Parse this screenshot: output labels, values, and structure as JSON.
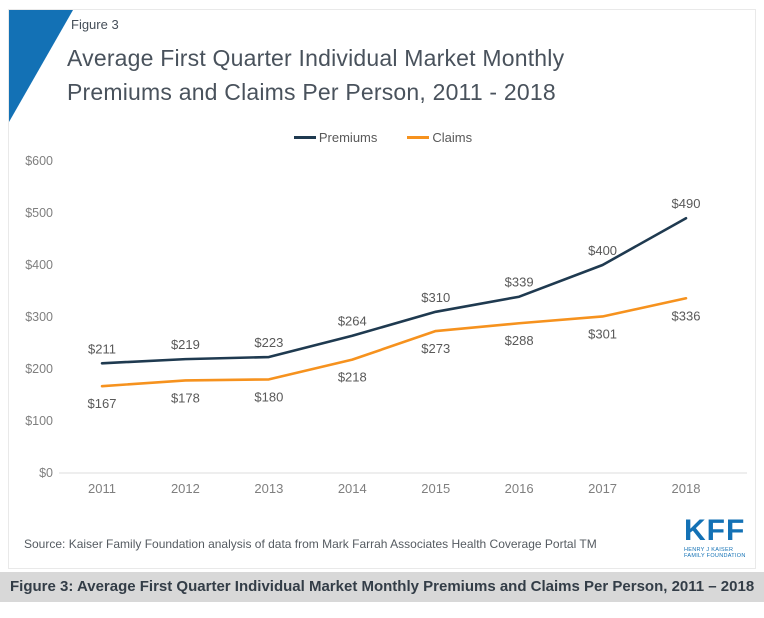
{
  "header": {
    "figure_label": "Figure 3",
    "title_line1": "Average First Quarter Individual Market Monthly",
    "title_line2": "Premiums and Claims Per Person, 2011 - 2018"
  },
  "chart_data": {
    "type": "line",
    "title": "Average First Quarter Individual Market Monthly Premiums and Claims Per Person, 2011 - 2018",
    "categories": [
      "2011",
      "2012",
      "2013",
      "2014",
      "2015",
      "2016",
      "2017",
      "2018"
    ],
    "series": [
      {
        "name": "Premiums",
        "color": "#1f3a50",
        "values": [
          211,
          219,
          223,
          264,
          310,
          339,
          400,
          490
        ]
      },
      {
        "name": "Claims",
        "color": "#f6921e",
        "values": [
          167,
          178,
          180,
          218,
          273,
          288,
          301,
          336
        ]
      }
    ],
    "xlabel": "",
    "ylabel": "",
    "ylim": [
      0,
      600
    ],
    "ytick_step": 100,
    "ytick_prefix": "$",
    "data_label_prefix": "$",
    "grid": false,
    "legend_position": "top-center",
    "data_labels": true
  },
  "footer": {
    "source": "Source: Kaiser Family Foundation analysis of data from Mark Farrah Associates Health Coverage Portal TM",
    "logo": {
      "text": "KFF",
      "line1": "HENRY J KAISER",
      "line2": "FAMILY FOUNDATION"
    }
  },
  "caption_bar": {
    "text": "Figure 3: Average First Quarter Individual Market Monthly Premiums and Claims Per Person, 2011 – 2018"
  },
  "colors": {
    "accent_blue": "#1371b5",
    "premiums_line": "#1f3a50",
    "claims_line": "#f6921e",
    "axis_text": "#7f7f7f",
    "data_label_text": "#595959",
    "axis_line": "#dcdcdc",
    "caption_bg": "#d8d8d8"
  }
}
